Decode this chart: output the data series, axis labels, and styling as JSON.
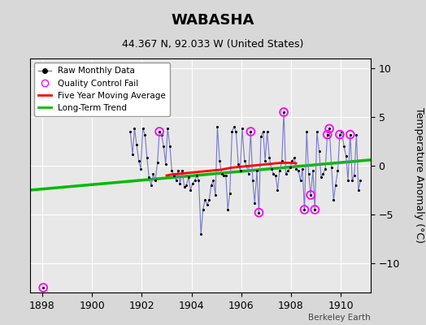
{
  "title": "WABASHA",
  "subtitle": "44.367 N, 92.033 W (United States)",
  "ylabel": "Temperature Anomaly (°C)",
  "watermark": "Berkeley Earth",
  "xlim": [
    1897.5,
    1911.2
  ],
  "ylim": [
    -13,
    11
  ],
  "yticks": [
    -10,
    -5,
    0,
    5,
    10
  ],
  "xticks": [
    1898,
    1900,
    1902,
    1904,
    1906,
    1908,
    1910
  ],
  "background_color": "#d8d8d8",
  "plot_bg_color": "#e8e8e8",
  "raw_line_color": "#7777cc",
  "raw_marker_color": "#000000",
  "ma_color": "#ff0000",
  "trend_color": "#00bb00",
  "qc_color": "#ff00ff",
  "raw_data": [
    [
      1901.54,
      3.5
    ],
    [
      1901.63,
      1.2
    ],
    [
      1901.71,
      3.8
    ],
    [
      1901.79,
      2.2
    ],
    [
      1901.88,
      0.5
    ],
    [
      1901.96,
      -0.3
    ],
    [
      1902.04,
      3.8
    ],
    [
      1902.13,
      3.2
    ],
    [
      1902.21,
      0.8
    ],
    [
      1902.29,
      -1.2
    ],
    [
      1902.38,
      -2.0
    ],
    [
      1902.46,
      -0.8
    ],
    [
      1902.54,
      -1.5
    ],
    [
      1902.63,
      0.3
    ],
    [
      1902.71,
      3.5
    ],
    [
      1902.79,
      3.2
    ],
    [
      1902.88,
      2.0
    ],
    [
      1902.96,
      0.2
    ],
    [
      1903.04,
      3.8
    ],
    [
      1903.13,
      2.0
    ],
    [
      1903.21,
      -0.5
    ],
    [
      1903.29,
      -1.0
    ],
    [
      1903.38,
      -1.5
    ],
    [
      1903.46,
      -0.5
    ],
    [
      1903.54,
      -1.8
    ],
    [
      1903.63,
      -0.5
    ],
    [
      1903.71,
      -2.2
    ],
    [
      1903.79,
      -2.0
    ],
    [
      1903.88,
      -1.2
    ],
    [
      1903.96,
      -2.5
    ],
    [
      1904.04,
      -1.8
    ],
    [
      1904.13,
      -1.5
    ],
    [
      1904.21,
      -1.0
    ],
    [
      1904.29,
      -1.5
    ],
    [
      1904.38,
      -7.0
    ],
    [
      1904.46,
      -4.5
    ],
    [
      1904.54,
      -3.5
    ],
    [
      1904.63,
      -4.0
    ],
    [
      1904.71,
      -3.5
    ],
    [
      1904.79,
      -2.0
    ],
    [
      1904.88,
      -1.5
    ],
    [
      1904.96,
      -3.0
    ],
    [
      1905.04,
      4.0
    ],
    [
      1905.13,
      0.5
    ],
    [
      1905.21,
      -0.8
    ],
    [
      1905.29,
      -1.0
    ],
    [
      1905.38,
      -1.0
    ],
    [
      1905.46,
      -4.5
    ],
    [
      1905.54,
      -2.8
    ],
    [
      1905.63,
      3.5
    ],
    [
      1905.71,
      4.0
    ],
    [
      1905.79,
      3.5
    ],
    [
      1905.88,
      0.2
    ],
    [
      1905.96,
      -0.5
    ],
    [
      1906.04,
      3.8
    ],
    [
      1906.13,
      0.5
    ],
    [
      1906.21,
      0.0
    ],
    [
      1906.29,
      -0.8
    ],
    [
      1906.38,
      3.5
    ],
    [
      1906.46,
      -1.5
    ],
    [
      1906.54,
      -3.8
    ],
    [
      1906.63,
      -0.5
    ],
    [
      1906.71,
      -4.8
    ],
    [
      1906.79,
      3.0
    ],
    [
      1906.88,
      3.5
    ],
    [
      1906.96,
      0.5
    ],
    [
      1907.04,
      3.5
    ],
    [
      1907.13,
      0.8
    ],
    [
      1907.21,
      -0.3
    ],
    [
      1907.29,
      -0.8
    ],
    [
      1907.38,
      -1.0
    ],
    [
      1907.46,
      -2.5
    ],
    [
      1907.54,
      -0.5
    ],
    [
      1907.63,
      0.5
    ],
    [
      1907.71,
      5.5
    ],
    [
      1907.79,
      -0.8
    ],
    [
      1907.88,
      -0.5
    ],
    [
      1907.96,
      -0.2
    ],
    [
      1908.04,
      0.5
    ],
    [
      1908.13,
      0.8
    ],
    [
      1908.21,
      -0.3
    ],
    [
      1908.29,
      -0.5
    ],
    [
      1908.38,
      -1.5
    ],
    [
      1908.46,
      -0.3
    ],
    [
      1908.54,
      -4.5
    ],
    [
      1908.63,
      3.5
    ],
    [
      1908.71,
      -0.8
    ],
    [
      1908.79,
      -3.0
    ],
    [
      1908.88,
      -0.5
    ],
    [
      1908.96,
      -4.5
    ],
    [
      1909.04,
      3.5
    ],
    [
      1909.13,
      1.5
    ],
    [
      1909.21,
      -1.2
    ],
    [
      1909.29,
      -0.8
    ],
    [
      1909.38,
      -0.3
    ],
    [
      1909.46,
      3.2
    ],
    [
      1909.54,
      3.8
    ],
    [
      1909.63,
      -0.2
    ],
    [
      1909.71,
      -3.5
    ],
    [
      1909.79,
      -2.0
    ],
    [
      1909.88,
      -0.5
    ],
    [
      1909.96,
      3.2
    ],
    [
      1910.04,
      3.5
    ],
    [
      1910.13,
      2.0
    ],
    [
      1910.21,
      1.0
    ],
    [
      1910.29,
      -1.5
    ],
    [
      1910.38,
      3.2
    ],
    [
      1910.46,
      -1.5
    ],
    [
      1910.54,
      -1.0
    ],
    [
      1910.63,
      3.2
    ],
    [
      1910.71,
      -2.5
    ],
    [
      1910.79,
      -1.5
    ]
  ],
  "isolated_point": [
    [
      1898.04,
      -12.5
    ]
  ],
  "qc_fails": [
    [
      1898.04,
      -12.5
    ],
    [
      1902.71,
      3.5
    ],
    [
      1906.38,
      3.5
    ],
    [
      1906.71,
      -4.8
    ],
    [
      1907.71,
      5.5
    ],
    [
      1908.54,
      -4.5
    ],
    [
      1908.79,
      -3.0
    ],
    [
      1908.96,
      -4.5
    ],
    [
      1909.46,
      3.2
    ],
    [
      1909.54,
      3.8
    ],
    [
      1909.96,
      3.2
    ],
    [
      1910.38,
      3.2
    ]
  ],
  "moving_avg": [
    [
      1903.0,
      -1.0
    ],
    [
      1903.2,
      -0.9
    ],
    [
      1903.4,
      -0.85
    ],
    [
      1903.6,
      -0.8
    ],
    [
      1903.8,
      -0.75
    ],
    [
      1904.0,
      -0.7
    ],
    [
      1904.2,
      -0.65
    ],
    [
      1904.4,
      -0.6
    ],
    [
      1904.6,
      -0.55
    ],
    [
      1904.8,
      -0.5
    ],
    [
      1905.0,
      -0.45
    ],
    [
      1905.2,
      -0.4
    ],
    [
      1905.4,
      -0.3
    ],
    [
      1905.6,
      -0.2
    ],
    [
      1905.8,
      -0.15
    ],
    [
      1906.0,
      -0.1
    ],
    [
      1906.2,
      -0.05
    ],
    [
      1906.4,
      0.0
    ],
    [
      1906.6,
      0.05
    ],
    [
      1906.8,
      0.1
    ],
    [
      1907.0,
      0.15
    ],
    [
      1907.2,
      0.2
    ],
    [
      1907.4,
      0.25
    ],
    [
      1907.6,
      0.3
    ],
    [
      1907.8,
      0.3
    ],
    [
      1908.0,
      0.3
    ],
    [
      1908.2,
      0.25
    ]
  ],
  "trend_x": [
    1897.5,
    1911.2
  ],
  "trend_y": [
    -2.5,
    0.6
  ],
  "legend_loc": "upper left",
  "title_fontsize": 13,
  "subtitle_fontsize": 9,
  "tick_fontsize": 9,
  "ylabel_fontsize": 9
}
